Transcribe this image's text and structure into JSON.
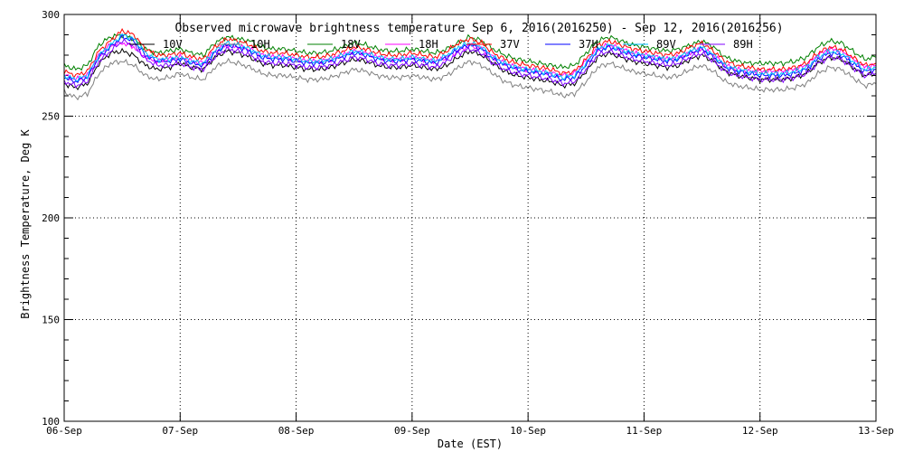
{
  "chart_data": {
    "type": "line",
    "title": "Observed microwave brightness temperature Sep  6, 2016(2016250) - Sep 12, 2016(2016256)",
    "xlabel": "Date (EST)",
    "ylabel": "Brightness Temperature, Deg K",
    "xlim": [
      "2016-09-06",
      "2016-09-13"
    ],
    "ylim": [
      100,
      300
    ],
    "x_ticks": [
      "06-Sep",
      "07-Sep",
      "08-Sep",
      "09-Sep",
      "10-Sep",
      "11-Sep",
      "12-Sep",
      "13-Sep"
    ],
    "y_ticks": [
      100,
      150,
      200,
      250,
      300
    ],
    "grid": true,
    "legend_position": "top",
    "x_unit": "days since 2016-09-06",
    "x": [
      0.0,
      0.1,
      0.2,
      0.3,
      0.4,
      0.5,
      0.6,
      0.7,
      0.8,
      0.9,
      1.0,
      1.1,
      1.2,
      1.3,
      1.4,
      1.5,
      1.6,
      1.7,
      1.8,
      1.9,
      2.0,
      2.1,
      2.2,
      2.3,
      2.4,
      2.5,
      2.6,
      2.7,
      2.8,
      2.9,
      3.0,
      3.1,
      3.2,
      3.3,
      3.4,
      3.5,
      3.6,
      3.7,
      3.8,
      3.9,
      4.0,
      4.1,
      4.2,
      4.3,
      4.4,
      4.5,
      4.6,
      4.7,
      4.8,
      4.9,
      5.0,
      5.1,
      5.2,
      5.3,
      5.4,
      5.5,
      5.6,
      5.7,
      5.8,
      5.9,
      6.0,
      6.1,
      6.2,
      6.3,
      6.4,
      6.5,
      6.6,
      6.7,
      6.8,
      6.9,
      7.0
    ],
    "series": [
      {
        "name": "10V",
        "color": "#000000",
        "values": [
          266,
          264,
          266,
          276,
          281,
          282,
          280,
          275,
          273,
          274,
          276,
          274,
          273,
          279,
          282,
          281,
          279,
          276,
          275,
          275,
          274,
          273,
          273,
          274,
          276,
          278,
          277,
          275,
          274,
          274,
          275,
          274,
          273,
          275,
          279,
          282,
          280,
          276,
          272,
          270,
          269,
          268,
          267,
          265,
          266,
          272,
          279,
          281,
          279,
          277,
          276,
          275,
          274,
          275,
          278,
          280,
          277,
          272,
          270,
          269,
          268,
          268,
          268,
          269,
          271,
          276,
          279,
          278,
          274,
          270,
          271
        ]
      },
      {
        "name": "10H",
        "color": "#808080",
        "values": [
          262,
          259,
          261,
          271,
          276,
          277,
          275,
          270,
          268,
          269,
          271,
          269,
          268,
          274,
          277,
          276,
          274,
          271,
          270,
          270,
          269,
          268,
          268,
          269,
          271,
          273,
          272,
          270,
          269,
          269,
          270,
          269,
          268,
          270,
          274,
          277,
          275,
          271,
          267,
          265,
          264,
          263,
          262,
          260,
          261,
          267,
          274,
          276,
          274,
          272,
          271,
          270,
          269,
          270,
          273,
          275,
          272,
          267,
          265,
          264,
          263,
          263,
          263,
          264,
          266,
          271,
          274,
          273,
          269,
          265,
          266
        ]
      },
      {
        "name": "18V",
        "color": "#008000",
        "values": [
          275,
          273,
          275,
          285,
          289,
          290,
          288,
          283,
          281,
          282,
          283,
          281,
          280,
          286,
          289,
          288,
          287,
          284,
          283,
          283,
          282,
          281,
          281,
          282,
          284,
          286,
          285,
          283,
          282,
          282,
          283,
          282,
          281,
          283,
          286,
          289,
          287,
          283,
          280,
          278,
          277,
          276,
          275,
          274,
          275,
          281,
          287,
          289,
          287,
          285,
          284,
          283,
          282,
          283,
          285,
          287,
          284,
          279,
          277,
          276,
          276,
          276,
          276,
          277,
          279,
          284,
          287,
          286,
          282,
          278,
          279
        ]
      },
      {
        "name": "18H",
        "color": "#ff00ff",
        "values": [
          270,
          268,
          270,
          280,
          285,
          286,
          284,
          279,
          277,
          278,
          279,
          277,
          276,
          282,
          285,
          284,
          283,
          280,
          279,
          279,
          278,
          277,
          277,
          278,
          280,
          282,
          281,
          279,
          278,
          278,
          279,
          278,
          277,
          279,
          282,
          285,
          283,
          279,
          276,
          274,
          273,
          272,
          271,
          270,
          271,
          277,
          283,
          285,
          283,
          281,
          280,
          279,
          278,
          279,
          281,
          283,
          280,
          275,
          273,
          272,
          272,
          272,
          272,
          273,
          275,
          280,
          283,
          282,
          278,
          274,
          275
        ]
      },
      {
        "name": "37V",
        "color": "#ff0000",
        "values": [
          272,
          270,
          272,
          282,
          287,
          292,
          290,
          283,
          280,
          280,
          281,
          279,
          278,
          284,
          288,
          287,
          285,
          282,
          281,
          281,
          280,
          279,
          279,
          280,
          282,
          284,
          283,
          281,
          280,
          280,
          281,
          280,
          279,
          282,
          286,
          288,
          286,
          281,
          278,
          276,
          275,
          274,
          273,
          271,
          272,
          278,
          285,
          287,
          285,
          283,
          282,
          281,
          280,
          281,
          284,
          286,
          282,
          277,
          275,
          274,
          273,
          273,
          273,
          274,
          276,
          281,
          284,
          283,
          279,
          275,
          276
        ]
      },
      {
        "name": "37H",
        "color": "#0000ff",
        "values": [
          269,
          267,
          269,
          279,
          284,
          289,
          287,
          280,
          277,
          277,
          278,
          276,
          275,
          281,
          285,
          284,
          282,
          279,
          278,
          278,
          277,
          276,
          276,
          277,
          279,
          281,
          280,
          278,
          277,
          277,
          278,
          277,
          276,
          279,
          283,
          285,
          283,
          278,
          275,
          273,
          272,
          271,
          270,
          268,
          269,
          275,
          282,
          284,
          282,
          280,
          279,
          278,
          277,
          278,
          281,
          283,
          279,
          274,
          272,
          271,
          270,
          270,
          270,
          271,
          273,
          278,
          281,
          280,
          276,
          272,
          273
        ]
      },
      {
        "name": "89V",
        "color": "#00bfff",
        "values": [
          270,
          268,
          270,
          280,
          285,
          290,
          288,
          281,
          278,
          278,
          279,
          277,
          276,
          282,
          286,
          285,
          283,
          280,
          279,
          279,
          278,
          277,
          277,
          278,
          280,
          282,
          281,
          279,
          278,
          278,
          279,
          278,
          277,
          280,
          284,
          286,
          284,
          279,
          276,
          274,
          273,
          272,
          271,
          269,
          270,
          276,
          283,
          285,
          283,
          281,
          280,
          279,
          278,
          279,
          282,
          284,
          280,
          275,
          273,
          272,
          271,
          271,
          271,
          272,
          274,
          279,
          282,
          281,
          277,
          273,
          274
        ]
      },
      {
        "name": "89H",
        "color": "#8000ff",
        "values": [
          267,
          265,
          267,
          277,
          282,
          287,
          285,
          278,
          275,
          275,
          276,
          274,
          273,
          279,
          283,
          282,
          280,
          277,
          276,
          276,
          275,
          274,
          274,
          275,
          277,
          279,
          278,
          276,
          275,
          275,
          276,
          275,
          274,
          277,
          281,
          283,
          281,
          276,
          273,
          271,
          270,
          269,
          268,
          266,
          267,
          273,
          280,
          282,
          280,
          278,
          277,
          276,
          275,
          276,
          279,
          281,
          277,
          272,
          270,
          269,
          268,
          268,
          268,
          269,
          271,
          276,
          279,
          278,
          274,
          270,
          271
        ]
      }
    ]
  }
}
